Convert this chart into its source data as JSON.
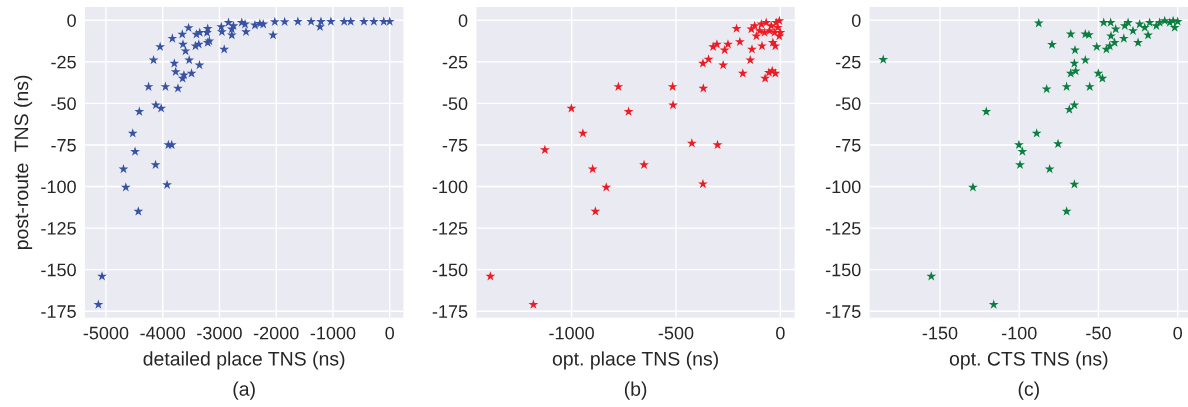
{
  "chart_data": [
    {
      "type": "scatter",
      "xlabel": "detailed place TNS (ns)",
      "ylabel": "post-route  TNS (ns)",
      "annotations": [
        "(a)"
      ],
      "marker": "star",
      "grid": true,
      "xlim": [
        -5370,
        240
      ],
      "ylim": [
        -179,
        8
      ],
      "xticks": [
        -5000,
        -4000,
        -3000,
        -2000,
        -1000,
        0
      ],
      "yticks": [
        0,
        -25,
        -50,
        -75,
        -100,
        -125,
        -150,
        -175
      ],
      "series": [
        {
          "color": "#3953a4",
          "x": [
            -5133,
            -5069,
            -4429,
            -4650,
            -4691,
            -4487,
            -4528,
            -4412,
            -4126,
            -3923,
            -3900,
            -3841,
            -4027,
            -4120,
            -4249,
            -3952,
            -3731,
            -4161,
            -4045,
            -3830,
            -3795,
            -3771,
            -3649,
            -3626,
            -3492,
            -3352,
            -3533,
            -3597,
            -3643,
            -3655,
            -3544,
            -3405,
            -3347,
            -3422,
            -3364,
            -3207,
            -3178,
            -3207,
            -3219,
            -2916,
            -2968,
            -2957,
            -2840,
            -2782,
            -2782,
            -2753,
            -2607,
            -2532,
            -2549,
            -2375,
            -2288,
            -2229,
            -2055,
            -2025,
            -1851,
            -1618,
            -1385,
            -1228,
            -1211,
            -1036,
            -803,
            -687,
            -454,
            -279,
            -105,
            0
          ],
          "values": [
            -171,
            -154,
            -115,
            -100.5,
            -89.5,
            -79,
            -68,
            -55,
            -87,
            -99,
            -75,
            -75,
            -53,
            -51,
            -40,
            -40,
            -41,
            -24,
            -16,
            -11,
            -26,
            -31,
            -35,
            -33,
            -32,
            -27,
            -24,
            -18.5,
            -14.5,
            -8.5,
            -4.6,
            -8.5,
            -7.4,
            -15.5,
            -14.5,
            -13.5,
            -12.5,
            -5,
            -7.5,
            -17.5,
            -4,
            -7,
            -1.4,
            -5.4,
            -9,
            -3.4,
            -1.4,
            -7,
            -2.4,
            -3,
            -2,
            -2.4,
            -9,
            -1,
            -1,
            -0.8,
            -0.8,
            -4,
            -0.8,
            -0.8,
            -0.8,
            -0.8,
            -0.8,
            -0.8,
            -0.8,
            -0.8
          ]
        }
      ]
    },
    {
      "type": "scatter",
      "xlabel": "opt. place TNS (ns)",
      "annotations": [
        "(b)"
      ],
      "marker": "star",
      "grid": true,
      "xlim": [
        -1456,
        69
      ],
      "ylim": [
        -179,
        8
      ],
      "xticks": [
        -1000,
        -500,
        0
      ],
      "yticks": [
        0,
        -25,
        -50,
        -75,
        -100,
        -125,
        -150,
        -175
      ],
      "series": [
        {
          "color": "#ed1c24",
          "x": [
            -1389,
            -1183,
            -1128,
            -1001,
            -946,
            -899,
            -886,
            -834,
            -776,
            -727,
            -653,
            -516,
            -514,
            -424,
            -301,
            -371,
            -369,
            -371,
            -344,
            -322,
            -304,
            -267,
            -251,
            -274,
            -210,
            -194,
            -180,
            -144,
            -136,
            -88,
            -73,
            -55,
            -39,
            -24,
            -24,
            -139,
            -123,
            -115,
            -91,
            -68,
            -52,
            -44,
            -28,
            -20,
            -13,
            -5,
            -5,
            -36,
            0,
            -76,
            -99
          ],
          "values": [
            -154,
            -171,
            -78,
            -53,
            -68,
            -89.5,
            -115,
            -100.5,
            -40,
            -55,
            -87,
            -40,
            -51,
            -74,
            -75,
            -98.5,
            -41,
            -26,
            -23.5,
            -16,
            -14.5,
            -18,
            -14.5,
            -27,
            -5,
            -13,
            -32,
            -24,
            -17.5,
            -15.5,
            -35,
            -31.5,
            -30.5,
            -32,
            -15.5,
            -5.4,
            -3.4,
            -9.5,
            -2.4,
            -1.4,
            -6.4,
            -3.4,
            -7.4,
            -1.4,
            -4.4,
            -0.4,
            -9.5,
            -13.5,
            -7.4,
            -7.4,
            -6.4
          ]
        }
      ]
    },
    {
      "type": "scatter",
      "xlabel": "opt. CTS TNS (ns)",
      "annotations": [
        "(c)"
      ],
      "marker": "star",
      "grid": true,
      "xlim": [
        -194.4,
        6.5
      ],
      "ylim": [
        -179,
        8
      ],
      "xticks": [
        -150,
        -100,
        -50,
        0
      ],
      "yticks": [
        0,
        -25,
        -50,
        -75,
        -100,
        -125,
        -150,
        -175
      ],
      "series": [
        {
          "color": "#0a7f3f",
          "x": [
            -185.8,
            -155.5,
            -116.1,
            -129.2,
            -120.8,
            -99.5,
            -100.2,
            -98.0,
            -89,
            -80.8,
            -75.5,
            -65.2,
            -70.1,
            -68.4,
            -65.2,
            -70.1,
            -82.7,
            -55.5,
            -50.1,
            -47.5,
            -51.1,
            -58.3,
            -67.5,
            -64.4,
            -65.2,
            -64.8,
            -79.3,
            -87.7,
            -67.5,
            -58.3,
            -56,
            -46.7,
            -42.3,
            -45,
            -42.9,
            -39.8,
            -42.1,
            -39.1,
            -34,
            -33.4,
            -31.3,
            -28.2,
            -25,
            -24,
            -20.8,
            -18.7,
            -17.7,
            -13.5,
            -11.4,
            -8.2,
            -5,
            -2.9,
            -1.9,
            0
          ],
          "values": [
            -23.7,
            -154,
            -171,
            -100.5,
            -55,
            -87,
            -75,
            -79,
            -68,
            -89.5,
            -74.4,
            -98.7,
            -115,
            -53.7,
            -51,
            -40,
            -41.4,
            -40,
            -32,
            -35,
            -16,
            -24,
            -32,
            -30.6,
            -26,
            -18,
            -14.7,
            -1.8,
            -8.4,
            -8.4,
            -8.8,
            -1.4,
            -1.4,
            -17.5,
            -15.5,
            -13.5,
            -9.5,
            -5.4,
            -11,
            -3.4,
            -1.4,
            -6.4,
            -13.5,
            -2.4,
            -4.4,
            -9,
            -1.4,
            -3.4,
            -1.4,
            -0.4,
            -1.4,
            -0.4,
            -4.4,
            -0.8
          ]
        }
      ]
    }
  ]
}
